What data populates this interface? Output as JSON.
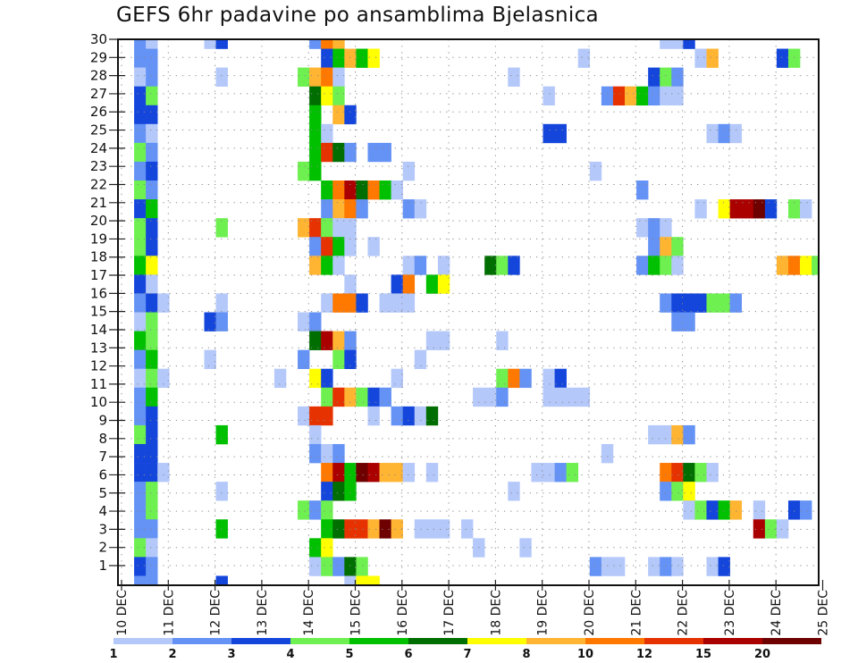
{
  "chart_data": {
    "type": "heatmap",
    "title": "GEFS 6hr padavine po ansamblima Bjelasnica",
    "x_step_hours": 6,
    "x_tick_labels": [
      "10 DEC",
      "11 DEC",
      "12 DEC",
      "13 DEC",
      "14 DEC",
      "15 DEC",
      "16 DEC",
      "17 DEC",
      "18 DEC",
      "19 DEC",
      "20 DEC",
      "21 DEC",
      "22 DEC",
      "23 DEC",
      "24 DEC",
      "25 DEC"
    ],
    "y_tick_labels": [
      "30",
      "29",
      "28",
      "27",
      "26",
      "25",
      "24",
      "23",
      "22",
      "21",
      "20",
      "19",
      "18",
      "17",
      "16",
      "15",
      "14",
      "13",
      "12",
      "11",
      "10",
      "9",
      "8",
      "7",
      "6",
      "5",
      "4",
      "3",
      "2",
      "1"
    ],
    "grid": true,
    "legend": {
      "placement": "bottom",
      "labels": [
        "1",
        "2",
        "3",
        "4",
        "5",
        "6",
        "7",
        "8",
        "10",
        "12",
        "15",
        "20"
      ],
      "levels": [
        1,
        2,
        3,
        4,
        5,
        6,
        7,
        8,
        10,
        12,
        15,
        20
      ],
      "colors": [
        "#b4c8fa",
        "#6492f5",
        "#1446dc",
        "#6ef050",
        "#00c000",
        "#006e00",
        "#ffff00",
        "#ffb432",
        "#ff7800",
        "#e63200",
        "#aa0000",
        "#6e0000"
      ]
    },
    "rows_note": "rows listed top to bottom; each cell = [6h step index from 10 DEC 00Z, precipitation class lower bound]",
    "rows": [
      [
        [
          1,
          2
        ],
        [
          2,
          1
        ],
        [
          7,
          1
        ],
        [
          8,
          3
        ],
        [
          16,
          2
        ],
        [
          17,
          10
        ],
        [
          18,
          8
        ],
        [
          46,
          1
        ],
        [
          47,
          1
        ],
        [
          48,
          3
        ]
      ],
      [
        [
          1,
          2
        ],
        [
          2,
          2
        ],
        [
          17,
          3
        ],
        [
          18,
          5
        ],
        [
          19,
          8
        ],
        [
          20,
          5
        ],
        [
          21,
          7
        ],
        [
          39,
          1
        ],
        [
          49,
          1
        ],
        [
          50,
          8
        ],
        [
          56,
          3
        ],
        [
          57,
          4
        ]
      ],
      [
        [
          1,
          1
        ],
        [
          2,
          2
        ],
        [
          8,
          1
        ],
        [
          15,
          4
        ],
        [
          16,
          8
        ],
        [
          17,
          10
        ],
        [
          18,
          1
        ],
        [
          33,
          1
        ],
        [
          45,
          3
        ],
        [
          46,
          4
        ],
        [
          47,
          2
        ]
      ],
      [
        [
          1,
          3
        ],
        [
          2,
          4
        ],
        [
          16,
          6
        ],
        [
          17,
          7
        ],
        [
          18,
          4
        ],
        [
          36,
          1
        ],
        [
          41,
          2
        ],
        [
          42,
          12
        ],
        [
          43,
          8
        ],
        [
          44,
          5
        ],
        [
          45,
          2
        ],
        [
          46,
          1
        ],
        [
          47,
          1
        ]
      ],
      [
        [
          1,
          3
        ],
        [
          2,
          3
        ],
        [
          16,
          5
        ],
        [
          18,
          8
        ],
        [
          19,
          3
        ]
      ],
      [
        [
          1,
          2
        ],
        [
          2,
          1
        ],
        [
          16,
          5
        ],
        [
          17,
          1
        ],
        [
          36,
          3
        ],
        [
          37,
          3
        ],
        [
          50,
          1
        ],
        [
          51,
          2
        ],
        [
          52,
          1
        ]
      ],
      [
        [
          1,
          4
        ],
        [
          2,
          2
        ],
        [
          16,
          5
        ],
        [
          17,
          12
        ],
        [
          18,
          6
        ],
        [
          19,
          2
        ],
        [
          21,
          2
        ],
        [
          22,
          2
        ]
      ],
      [
        [
          1,
          2
        ],
        [
          2,
          3
        ],
        [
          15,
          4
        ],
        [
          16,
          5
        ],
        [
          24,
          1
        ],
        [
          40,
          1
        ]
      ],
      [
        [
          1,
          4
        ],
        [
          2,
          2
        ],
        [
          17,
          5
        ],
        [
          18,
          10
        ],
        [
          19,
          15
        ],
        [
          20,
          6
        ],
        [
          21,
          10
        ],
        [
          22,
          5
        ],
        [
          23,
          1
        ],
        [
          44,
          2
        ]
      ],
      [
        [
          1,
          3
        ],
        [
          2,
          5
        ],
        [
          17,
          2
        ],
        [
          18,
          8
        ],
        [
          19,
          10
        ],
        [
          20,
          2
        ],
        [
          24,
          2
        ],
        [
          25,
          1
        ],
        [
          49,
          1
        ],
        [
          51,
          7
        ],
        [
          52,
          15
        ],
        [
          53,
          15
        ],
        [
          54,
          20
        ],
        [
          55,
          3
        ],
        [
          57,
          4
        ],
        [
          58,
          1
        ]
      ],
      [
        [
          1,
          4
        ],
        [
          2,
          3
        ],
        [
          8,
          4
        ],
        [
          15,
          8
        ],
        [
          16,
          12
        ],
        [
          17,
          4
        ],
        [
          18,
          1
        ],
        [
          19,
          1
        ],
        [
          44,
          1
        ],
        [
          45,
          2
        ],
        [
          46,
          1
        ]
      ],
      [
        [
          1,
          4
        ],
        [
          2,
          3
        ],
        [
          16,
          2
        ],
        [
          17,
          12
        ],
        [
          18,
          5
        ],
        [
          19,
          1
        ],
        [
          21,
          1
        ],
        [
          45,
          2
        ],
        [
          46,
          8
        ],
        [
          47,
          4
        ]
      ],
      [
        [
          1,
          5
        ],
        [
          2,
          7
        ],
        [
          16,
          8
        ],
        [
          17,
          5
        ],
        [
          18,
          1
        ],
        [
          24,
          1
        ],
        [
          25,
          2
        ],
        [
          27,
          1
        ],
        [
          31,
          6
        ],
        [
          32,
          4
        ],
        [
          33,
          3
        ],
        [
          44,
          2
        ],
        [
          45,
          5
        ],
        [
          46,
          4
        ],
        [
          47,
          1
        ],
        [
          56,
          8
        ],
        [
          57,
          10
        ],
        [
          58,
          7
        ],
        [
          59,
          4
        ]
      ],
      [
        [
          1,
          3
        ],
        [
          2,
          1
        ],
        [
          19,
          1
        ],
        [
          23,
          3
        ],
        [
          24,
          10
        ],
        [
          26,
          5
        ],
        [
          27,
          7
        ]
      ],
      [
        [
          1,
          2
        ],
        [
          2,
          3
        ],
        [
          3,
          1
        ],
        [
          8,
          1
        ],
        [
          17,
          1
        ],
        [
          18,
          10
        ],
        [
          19,
          10
        ],
        [
          20,
          3
        ],
        [
          22,
          1
        ],
        [
          23,
          1
        ],
        [
          24,
          1
        ],
        [
          46,
          2
        ],
        [
          47,
          3
        ],
        [
          48,
          3
        ],
        [
          49,
          3
        ],
        [
          50,
          4
        ],
        [
          51,
          4
        ],
        [
          52,
          2
        ]
      ],
      [
        [
          1,
          1
        ],
        [
          2,
          4
        ],
        [
          7,
          3
        ],
        [
          8,
          2
        ],
        [
          15,
          1
        ],
        [
          16,
          2
        ],
        [
          47,
          2
        ],
        [
          48,
          2
        ]
      ],
      [
        [
          1,
          5
        ],
        [
          2,
          4
        ],
        [
          16,
          6
        ],
        [
          17,
          15
        ],
        [
          18,
          8
        ],
        [
          19,
          2
        ],
        [
          26,
          1
        ],
        [
          27,
          1
        ],
        [
          32,
          1
        ]
      ],
      [
        [
          1,
          2
        ],
        [
          2,
          5
        ],
        [
          7,
          1
        ],
        [
          15,
          2
        ],
        [
          18,
          4
        ],
        [
          19,
          3
        ],
        [
          25,
          1
        ]
      ],
      [
        [
          1,
          1
        ],
        [
          2,
          4
        ],
        [
          3,
          1
        ],
        [
          13,
          1
        ],
        [
          16,
          7
        ],
        [
          17,
          3
        ],
        [
          23,
          1
        ],
        [
          32,
          4
        ],
        [
          33,
          10
        ],
        [
          34,
          2
        ],
        [
          36,
          1
        ],
        [
          37,
          3
        ]
      ],
      [
        [
          1,
          2
        ],
        [
          2,
          5
        ],
        [
          17,
          4
        ],
        [
          18,
          12
        ],
        [
          19,
          8
        ],
        [
          20,
          4
        ],
        [
          21,
          3
        ],
        [
          22,
          2
        ],
        [
          30,
          1
        ],
        [
          31,
          1
        ],
        [
          32,
          2
        ],
        [
          36,
          1
        ],
        [
          37,
          1
        ],
        [
          38,
          1
        ],
        [
          39,
          1
        ]
      ],
      [
        [
          1,
          2
        ],
        [
          2,
          3
        ],
        [
          15,
          1
        ],
        [
          16,
          12
        ],
        [
          17,
          12
        ],
        [
          21,
          1
        ],
        [
          23,
          2
        ],
        [
          24,
          3
        ],
        [
          25,
          1
        ],
        [
          26,
          6
        ]
      ],
      [
        [
          1,
          4
        ],
        [
          2,
          3
        ],
        [
          8,
          5
        ],
        [
          16,
          1
        ],
        [
          45,
          1
        ],
        [
          46,
          1
        ],
        [
          47,
          8
        ],
        [
          48,
          2
        ]
      ],
      [
        [
          1,
          3
        ],
        [
          2,
          3
        ],
        [
          16,
          2
        ],
        [
          17,
          1
        ],
        [
          18,
          2
        ],
        [
          41,
          1
        ]
      ],
      [
        [
          1,
          3
        ],
        [
          2,
          3
        ],
        [
          3,
          1
        ],
        [
          17,
          10
        ],
        [
          18,
          15
        ],
        [
          19,
          5
        ],
        [
          20,
          20
        ],
        [
          21,
          15
        ],
        [
          22,
          8
        ],
        [
          23,
          8
        ],
        [
          24,
          1
        ],
        [
          26,
          1
        ],
        [
          35,
          1
        ],
        [
          36,
          1
        ],
        [
          37,
          2
        ],
        [
          38,
          4
        ],
        [
          46,
          10
        ],
        [
          47,
          12
        ],
        [
          48,
          6
        ],
        [
          49,
          4
        ],
        [
          50,
          1
        ]
      ],
      [
        [
          1,
          2
        ],
        [
          2,
          4
        ],
        [
          8,
          1
        ],
        [
          17,
          3
        ],
        [
          18,
          6
        ],
        [
          19,
          5
        ],
        [
          33,
          1
        ],
        [
          46,
          2
        ],
        [
          47,
          4
        ],
        [
          48,
          7
        ]
      ],
      [
        [
          1,
          2
        ],
        [
          2,
          4
        ],
        [
          15,
          4
        ],
        [
          16,
          2
        ],
        [
          17,
          4
        ],
        [
          48,
          1
        ],
        [
          49,
          4
        ],
        [
          50,
          3
        ],
        [
          51,
          5
        ],
        [
          52,
          8
        ],
        [
          54,
          1
        ],
        [
          57,
          3
        ],
        [
          58,
          2
        ]
      ],
      [
        [
          1,
          2
        ],
        [
          2,
          2
        ],
        [
          8,
          5
        ],
        [
          17,
          5
        ],
        [
          18,
          6
        ],
        [
          19,
          12
        ],
        [
          20,
          12
        ],
        [
          21,
          8
        ],
        [
          22,
          20
        ],
        [
          23,
          8
        ],
        [
          25,
          1
        ],
        [
          26,
          1
        ],
        [
          27,
          1
        ],
        [
          29,
          1
        ],
        [
          54,
          15
        ],
        [
          55,
          4
        ],
        [
          56,
          1
        ]
      ],
      [
        [
          1,
          4
        ],
        [
          2,
          1
        ],
        [
          16,
          5
        ],
        [
          17,
          7
        ],
        [
          30,
          1
        ],
        [
          34,
          1
        ]
      ],
      [
        [
          1,
          3
        ],
        [
          2,
          2
        ],
        [
          16,
          1
        ],
        [
          17,
          4
        ],
        [
          18,
          2
        ],
        [
          19,
          6
        ],
        [
          20,
          4
        ],
        [
          40,
          2
        ],
        [
          41,
          1
        ],
        [
          42,
          1
        ],
        [
          45,
          1
        ],
        [
          46,
          2
        ],
        [
          47,
          1
        ],
        [
          50,
          1
        ],
        [
          51,
          3
        ]
      ],
      [
        [
          1,
          2
        ],
        [
          2,
          2
        ],
        [
          8,
          3
        ],
        [
          19,
          1
        ],
        [
          20,
          7
        ],
        [
          21,
          7
        ]
      ]
    ]
  }
}
